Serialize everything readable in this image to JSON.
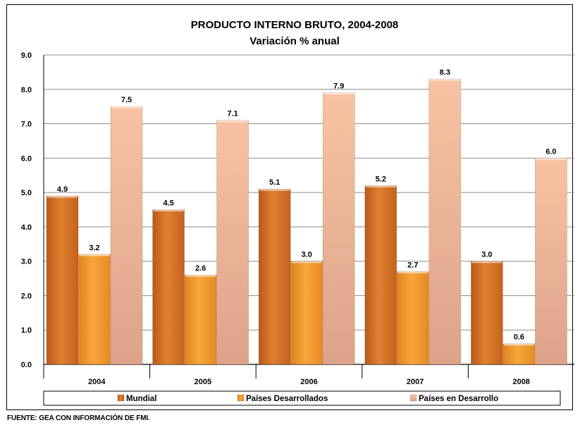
{
  "chart_data": {
    "type": "bar",
    "title": "PRODUCTO INTERNO BRUTO, 2004-2008",
    "subtitle": "Variación % anual",
    "categories": [
      "2004",
      "2005",
      "2006",
      "2007",
      "2008"
    ],
    "series": [
      {
        "name": "Mundial",
        "values": [
          4.9,
          4.5,
          5.1,
          5.2,
          3.0
        ],
        "labels": [
          "4.9",
          "4.5",
          "5.1",
          "5.2",
          "3.0"
        ],
        "color": "#D9772A"
      },
      {
        "name": "Países Desarrollados",
        "values": [
          3.2,
          2.6,
          3.0,
          2.7,
          0.6
        ],
        "labels": [
          "3.2",
          "2.6",
          "3.0",
          "2.7",
          "0.6"
        ],
        "color": "#F39A2E"
      },
      {
        "name": "Países en Desarrollo",
        "values": [
          7.5,
          7.1,
          7.9,
          8.3,
          6.0
        ],
        "labels": [
          "7.5",
          "7.1",
          "7.9",
          "8.3",
          "6.0"
        ],
        "color": "#F2B592"
      }
    ],
    "ylim": [
      0,
      9
    ],
    "yticks": [
      "0.0",
      "1.0",
      "2.0",
      "3.0",
      "4.0",
      "5.0",
      "6.0",
      "7.0",
      "8.0",
      "9.0"
    ],
    "grid": true,
    "legend_position": "bottom"
  },
  "source": "FUENTE: GEA CON INFORMACIÓN DE FMI."
}
